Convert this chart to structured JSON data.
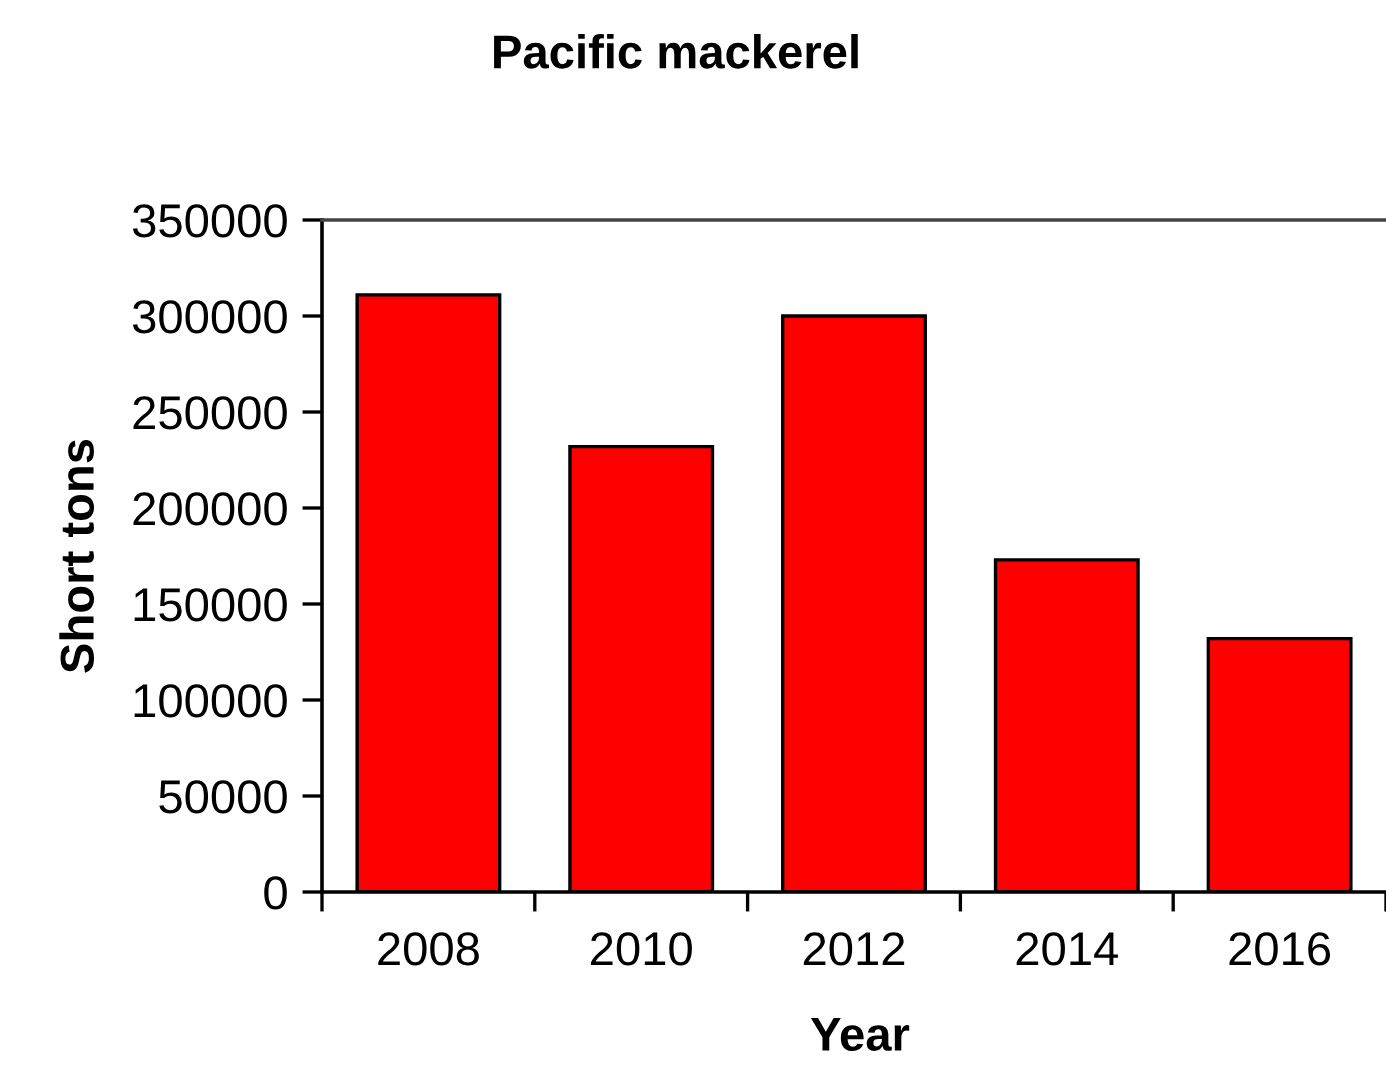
{
  "chart_data": {
    "type": "bar",
    "title": "Pacific mackerel",
    "xlabel": "Year",
    "ylabel": "Short tons",
    "categories": [
      "2008",
      "2010",
      "2012",
      "2014",
      "2016"
    ],
    "series": [
      {
        "color": "#ff0000",
        "values": [
          311000,
          232000,
          300000,
          173000,
          132000
        ]
      }
    ],
    "ylim": [
      0,
      350000
    ],
    "yticks": [
      0,
      50000,
      100000,
      150000,
      200000,
      250000,
      300000,
      350000
    ],
    "grid": false
  }
}
